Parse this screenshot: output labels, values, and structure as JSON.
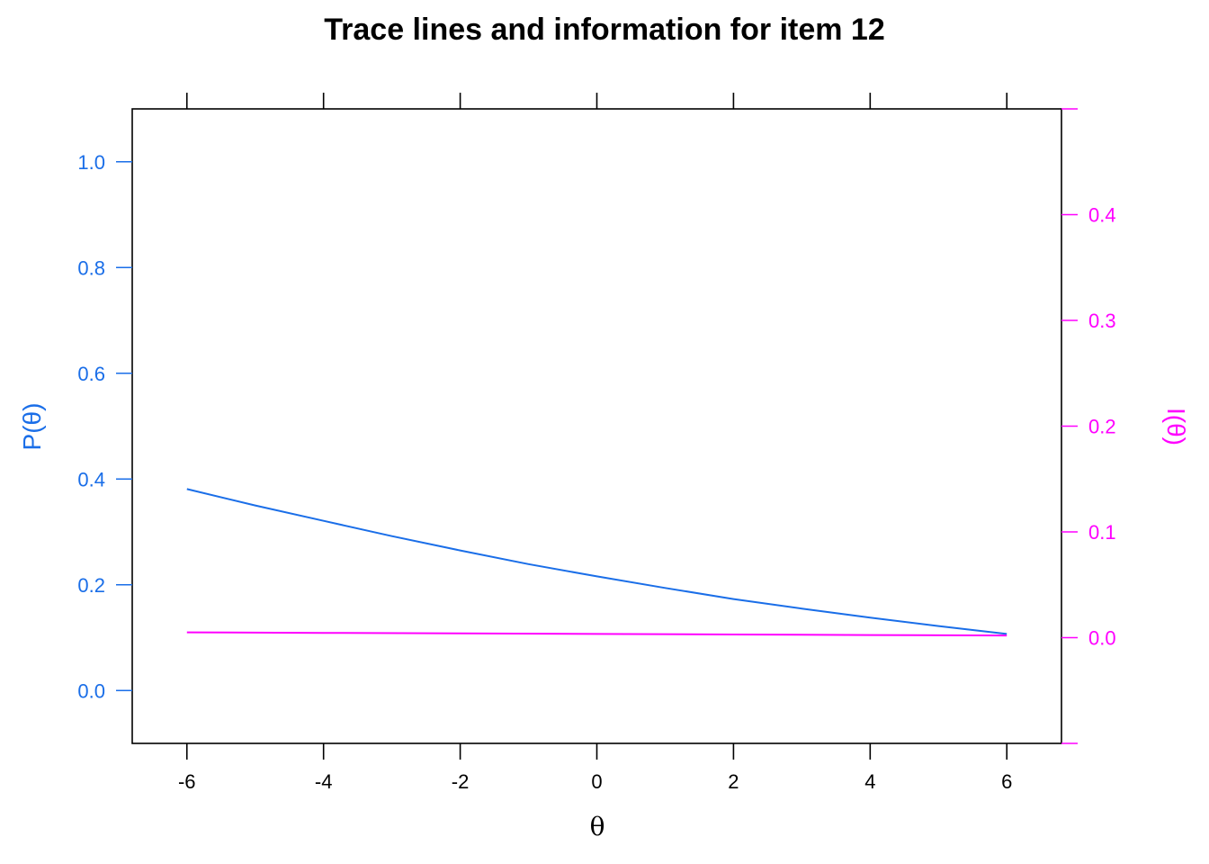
{
  "colors": {
    "trace": "#1a6ee8",
    "information": "#ff00ff",
    "frame": "#000000"
  },
  "chart_data": {
    "type": "line",
    "title": "Trace lines and information for item 12",
    "xlabel": "θ",
    "ylabel_left": "P(θ)",
    "ylabel_right": "I(θ)",
    "xlim": [
      -6.8,
      6.8
    ],
    "ylim_left": [
      -0.1,
      1.1
    ],
    "ylim_right": [
      -0.1,
      0.5
    ],
    "x_ticks": [
      -6,
      -4,
      -2,
      0,
      2,
      4,
      6
    ],
    "x_tick_labels": [
      "-6",
      "-4",
      "-2",
      "0",
      "2",
      "4",
      "6"
    ],
    "y_left_ticks": [
      0.0,
      0.2,
      0.4,
      0.6,
      0.8,
      1.0
    ],
    "y_left_tick_labels": [
      "0.0",
      "0.2",
      "0.4",
      "0.6",
      "0.8",
      "1.0"
    ],
    "y_right_ticks": [
      0.0,
      0.1,
      0.2,
      0.3,
      0.4
    ],
    "y_right_tick_labels": [
      "0.0",
      "0.1",
      "0.2",
      "0.3",
      "0.4"
    ],
    "grid": false,
    "series": [
      {
        "axis": "left",
        "x": [
          -6,
          -5,
          -4,
          -3,
          -2,
          -1,
          0,
          1,
          2,
          3,
          4,
          5,
          6
        ],
        "values": [
          0.381,
          0.35,
          0.321,
          0.292,
          0.265,
          0.239,
          0.216,
          0.194,
          0.173,
          0.155,
          0.138,
          0.122,
          0.107
        ]
      },
      {
        "axis": "right",
        "x": [
          -6,
          -4,
          -2,
          0,
          2,
          4,
          6
        ],
        "values": [
          0.005,
          0.0045,
          0.004,
          0.0035,
          0.003,
          0.0025,
          0.002
        ]
      }
    ]
  }
}
